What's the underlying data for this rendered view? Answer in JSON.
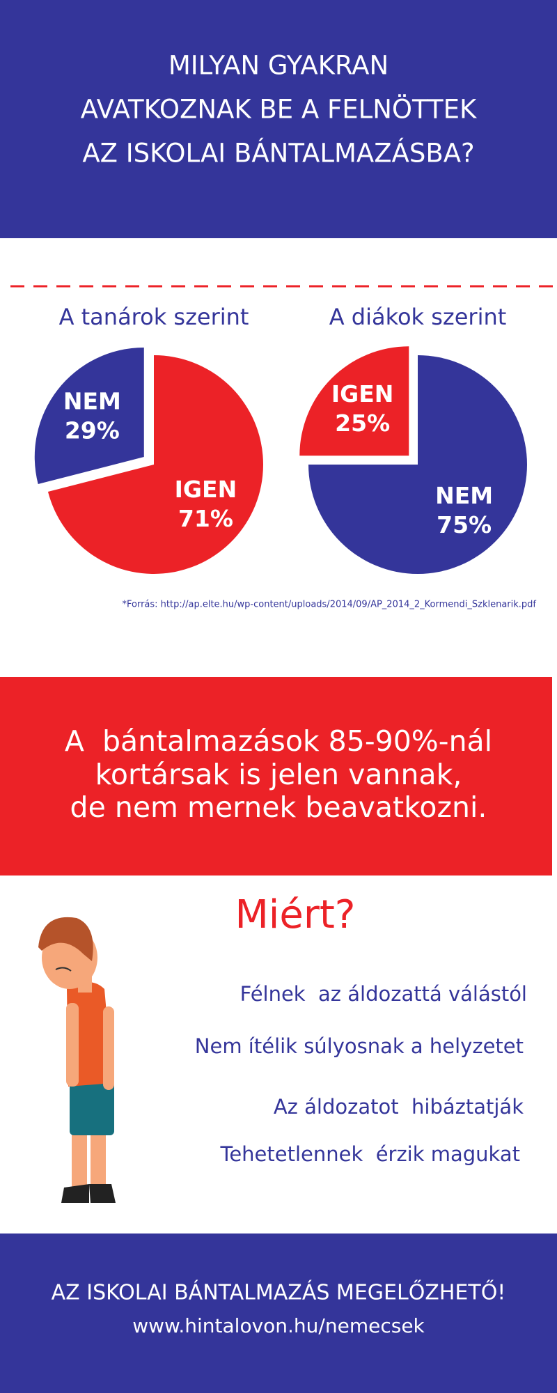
{
  "header": {
    "title_lines": [
      "MILYAN GYAKRAN",
      "AVATKOZNAK BE A FELNÖTTEK",
      "AZ ISKOLAI BÁNTALMAZÁSBA?"
    ]
  },
  "chart_data": [
    {
      "type": "pie",
      "title": "A tanárok szerint",
      "categories": [
        "IGEN",
        "NEM"
      ],
      "values": [
        71,
        29
      ],
      "value_labels": [
        "71%",
        "29%"
      ],
      "colors": [
        "#ec2227",
        "#34359a"
      ],
      "explode": [
        false,
        true
      ]
    },
    {
      "type": "pie",
      "title": "A diákok szerint",
      "categories": [
        "NEM",
        "IGEN"
      ],
      "values": [
        75,
        25
      ],
      "value_labels": [
        "75%",
        "25%"
      ],
      "colors": [
        "#34359a",
        "#ec2227"
      ],
      "explode": [
        false,
        true
      ]
    }
  ],
  "source": "*Forrás: http://ap.elte.hu/wp-content/uploads/2014/09/AP_2014_2_Kormendi_Szklenarik.pdf",
  "banner": {
    "lines": [
      "A  bántalmazások 85-90%-nál",
      "kortársak is jelen vannak,",
      "de nem mernek beavatkozni."
    ]
  },
  "why": {
    "title": "Miért?",
    "items": [
      "Félnek  az áldozattá válástól",
      "Nem ítélik súlyosnak a helyzetet",
      "Az áldozatot  hibáztatják",
      "Tehetetlennek  érzik magukat"
    ]
  },
  "footer": {
    "title": "AZ ISKOLAI BÁNTALMAZÁS MEGELŐZHETŐ!",
    "url": "www.hintalovon.hu/nemecsek"
  }
}
